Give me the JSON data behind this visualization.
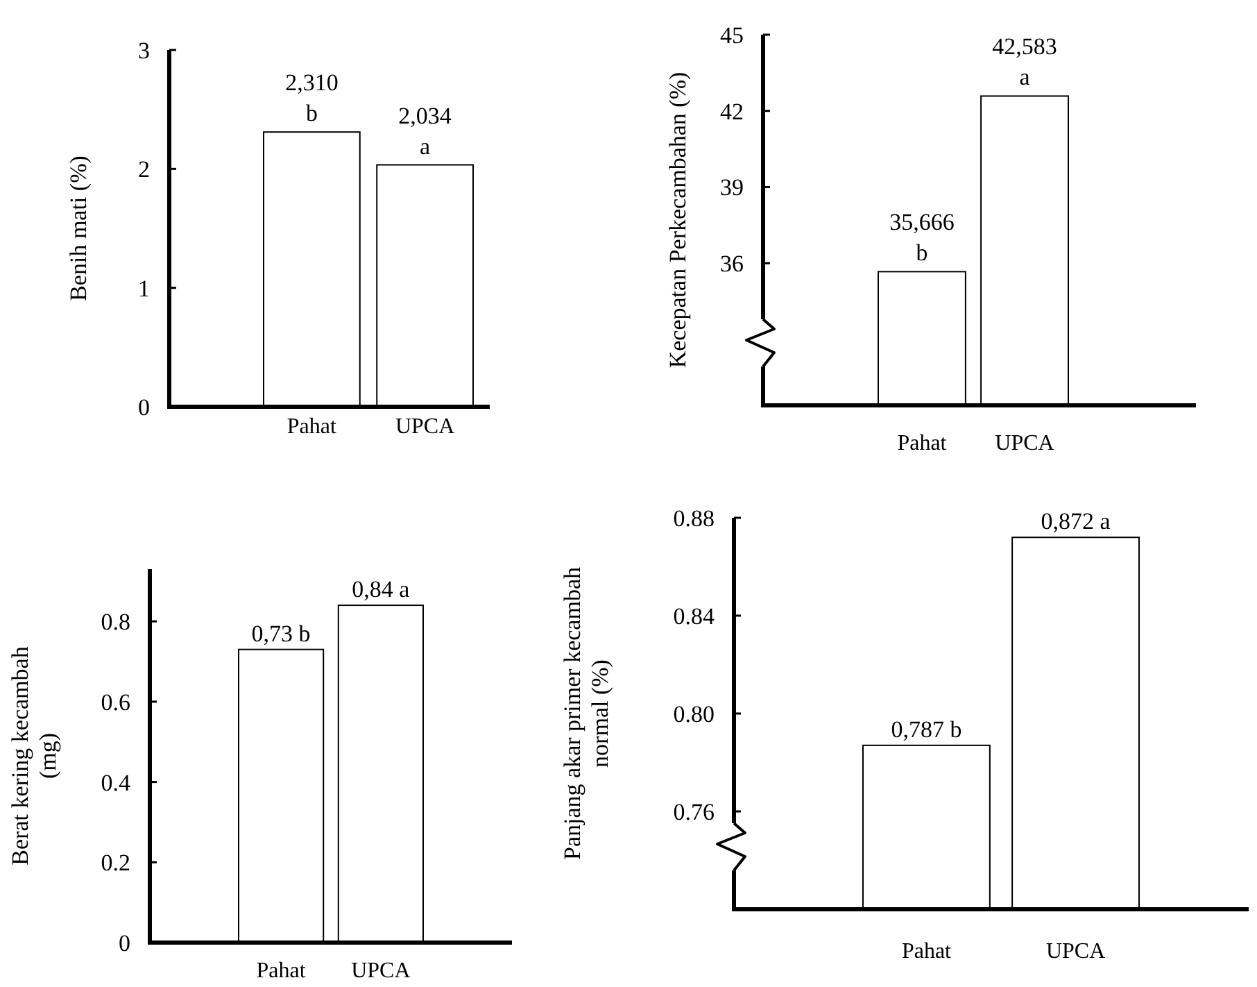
{
  "chart_data": [
    {
      "type": "bar",
      "ylabel": "Benih mati (%)",
      "categories": [
        "Pahat",
        "UPCA"
      ],
      "values": [
        2.31,
        2.034
      ],
      "colors": [
        "#ffffff",
        "#ffffff"
      ],
      "annotations": [
        {
          "text": "2,310",
          "x": "Pahat",
          "y": 2.31
        },
        {
          "text": "b",
          "x": "Pahat",
          "y": 2.31
        },
        {
          "text": "2,034",
          "x": "UPCA",
          "y": 2.034
        },
        {
          "text": "a",
          "x": "UPCA",
          "y": 2.034
        }
      ],
      "ylim": [
        0,
        3
      ],
      "yticks": [
        0,
        1,
        2,
        3
      ],
      "grid": false
    },
    {
      "type": "bar",
      "ylabel": "Kecepatan Perkecambahan (%)",
      "categories": [
        "Pahat",
        "UPCA"
      ],
      "values": [
        35.666,
        42.583
      ],
      "colors": [
        "#ffffff",
        "#ffffff"
      ],
      "annotations": [
        {
          "text": "35,666",
          "x": "Pahat",
          "y": 35.666
        },
        {
          "text": "b",
          "x": "Pahat",
          "y": 35.666
        },
        {
          "text": "42,583",
          "x": "UPCA",
          "y": 42.583
        },
        {
          "text": "a",
          "x": "UPCA",
          "y": 42.583
        }
      ],
      "ylim": [
        30.4,
        45
      ],
      "yticks": [
        36,
        39,
        42,
        45
      ],
      "grid": false
    },
    {
      "type": "bar",
      "ylabel": "Berat kering kecambah (mg)",
      "categories": [
        "Pahat",
        "UPCA"
      ],
      "values": [
        0.73,
        0.84
      ],
      "colors": [
        "#ffffff",
        "#ffffff"
      ],
      "value_labels": [
        "0,73 b",
        "0,84 a"
      ],
      "ylim": [
        0,
        0.93
      ],
      "yticks": [
        0,
        0.2,
        0.4,
        0.6,
        0.8
      ],
      "grid": false
    },
    {
      "type": "bar",
      "ylabel": "Panjang akar primer kecambah normal (%)",
      "categories": [
        "Pahat",
        "UPCA"
      ],
      "values": [
        0.787,
        0.872
      ],
      "colors": [
        "#ffffff",
        "#ffffff"
      ],
      "value_labels": [
        "0,787 b",
        "0,872 a"
      ],
      "ylim": [
        0.72,
        0.88
      ],
      "yticks": [
        {
          "value": 0.76,
          "label": "0.76"
        },
        {
          "value": 0.8,
          "label": "0.80"
        },
        {
          "value": 0.84,
          "label": "0.84"
        },
        {
          "value": 0.88,
          "label": "0.88"
        }
      ],
      "grid": false
    }
  ]
}
